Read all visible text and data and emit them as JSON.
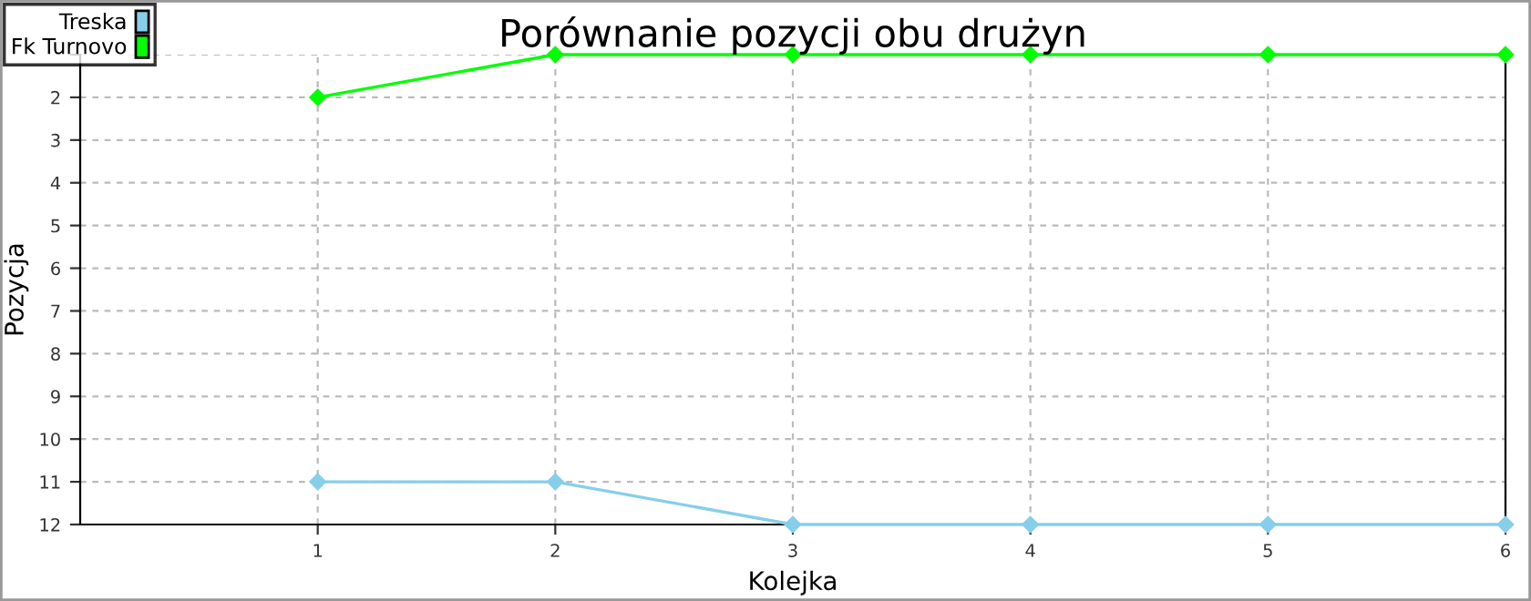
{
  "chart_data": {
    "type": "line",
    "title": "Porównanie pozycji obu drużyn",
    "xlabel": "Kolejka",
    "ylabel": "Pozycja",
    "x": [
      1,
      2,
      3,
      4,
      5,
      6
    ],
    "series": [
      {
        "name": "Treska",
        "color": "#87ceeb",
        "values": [
          11,
          11,
          12,
          12,
          12,
          12
        ]
      },
      {
        "name": "Fk Turnovo",
        "color": "#00ff00",
        "values": [
          2,
          1,
          1,
          1,
          1,
          1
        ]
      }
    ],
    "xlim": [
      0,
      6
    ],
    "xticks": [
      1,
      2,
      3,
      4,
      5,
      6
    ],
    "ylim": [
      12,
      1
    ],
    "yticks": [
      {
        "value": 1,
        "label": null
      },
      2,
      3,
      4,
      5,
      6,
      7,
      8,
      9,
      10,
      11,
      12
    ],
    "grid": true,
    "legend": "top left",
    "marker": "diamond",
    "line_style": "solid"
  }
}
